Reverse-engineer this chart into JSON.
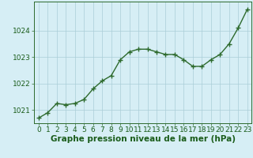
{
  "hours": [
    0,
    1,
    2,
    3,
    4,
    5,
    6,
    7,
    8,
    9,
    10,
    11,
    12,
    13,
    14,
    15,
    16,
    17,
    18,
    19,
    20,
    21,
    22,
    23
  ],
  "pressure": [
    1020.7,
    1020.9,
    1021.25,
    1021.2,
    1021.25,
    1021.4,
    1021.8,
    1022.1,
    1022.3,
    1022.9,
    1023.2,
    1023.3,
    1023.3,
    1023.2,
    1023.1,
    1023.1,
    1022.9,
    1022.65,
    1022.65,
    1022.9,
    1023.1,
    1023.5,
    1024.1,
    1024.8
  ],
  "line_color": "#2d6a2d",
  "marker": "+",
  "marker_size": 4,
  "linewidth": 1.0,
  "bg_color": "#d6eef5",
  "grid_color": "#aacdd8",
  "xlabel": "Graphe pression niveau de la mer (hPa)",
  "xlabel_color": "#1a5c1a",
  "tick_color": "#1a5c1a",
  "ylim": [
    1020.5,
    1025.1
  ],
  "yticks": [
    1021,
    1022,
    1023,
    1024
  ],
  "xlabel_fontsize": 7.5,
  "tick_fontsize": 6.5
}
